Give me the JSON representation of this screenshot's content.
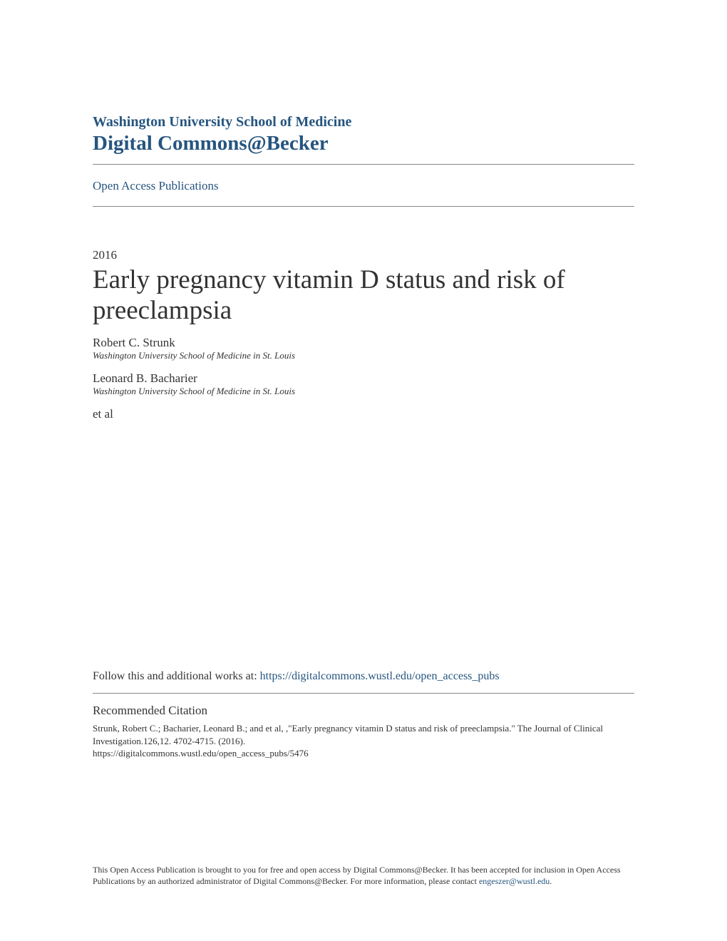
{
  "header": {
    "institution": "Washington University School of Medicine",
    "repository": "Digital Commons@Becker",
    "section_link": "Open Access Publications"
  },
  "article": {
    "year": "2016",
    "title": "Early pregnancy vitamin D status and risk of preeclampsia",
    "authors": [
      {
        "name": "Robert C. Strunk",
        "affiliation": "Washington University School of Medicine in St. Louis"
      },
      {
        "name": "Leonard B. Bacharier",
        "affiliation": "Washington University School of Medicine in St. Louis"
      }
    ],
    "etal": "et al"
  },
  "follow": {
    "prefix": "Follow this and additional works at: ",
    "url": "https://digitalcommons.wustl.edu/open_access_pubs"
  },
  "citation": {
    "heading": "Recommended Citation",
    "body": "Strunk, Robert C.; Bacharier, Leonard B.; and et al, ,\"Early pregnancy vitamin D status and risk of preeclampsia.\" The Journal of Clinical Investigation.126,12. 4702-4715. (2016).",
    "handle": "https://digitalcommons.wustl.edu/open_access_pubs/5476"
  },
  "footer": {
    "text_part1": "This Open Access Publication is brought to you for free and open access by Digital Commons@Becker. It has been accepted for inclusion in Open Access Publications by an authorized administrator of Digital Commons@Becker. For more information, please contact ",
    "contact_email": "engeszer@wustl.edu",
    "text_part2": "."
  },
  "colors": {
    "link_color": "#26557f",
    "body_text": "#333333",
    "divider": "#888888",
    "background": "#ffffff"
  }
}
